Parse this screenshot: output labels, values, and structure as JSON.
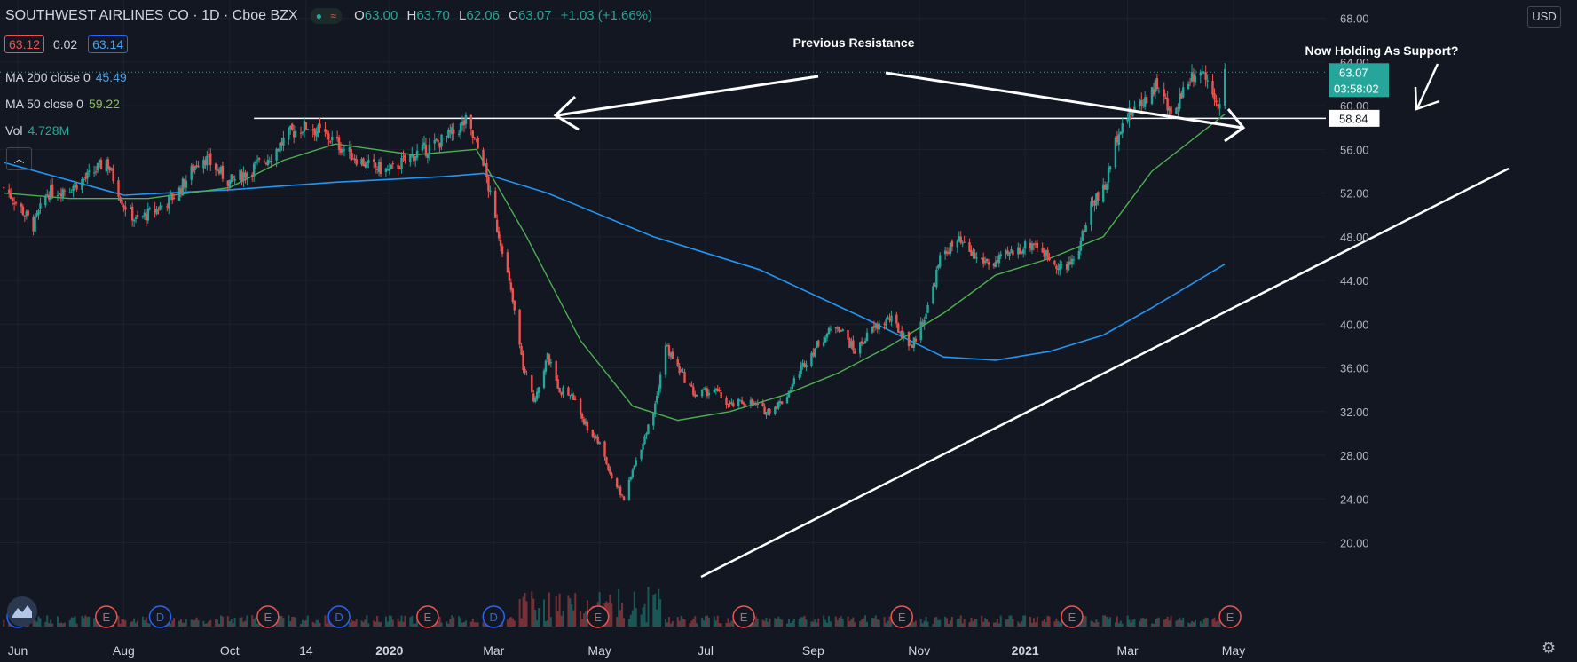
{
  "header": {
    "symbol": "SOUTHWEST AIRLINES CO · 1D · Cboe BZX",
    "open_label": "O",
    "open": "63.00",
    "high_label": "H",
    "high": "63.70",
    "low_label": "L",
    "low": "62.06",
    "close_label": "C",
    "close": "63.07",
    "change": "+1.03 (+1.66%)",
    "pill_dot": "●",
    "pill_wave": "≈",
    "bid": "63.12",
    "spread": "0.02",
    "ask": "63.14"
  },
  "indicators": {
    "ma200_label": "MA 200 close 0",
    "ma200_value": "45.49",
    "ma50_label": "MA 50 close 0",
    "ma50_value": "59.22",
    "vol_label": "Vol",
    "vol_value": "4.728M"
  },
  "ui": {
    "currency": "USD",
    "collapse_icon": "chevron-up-icon",
    "collapse_glyph": "︿",
    "settings_icon": "gear-icon",
    "settings_glyph": "⚙",
    "logo_icon": "tradingview-logo-icon"
  },
  "colors": {
    "background": "#131722",
    "up": "#26a69a",
    "down": "#ef5350",
    "ma200": "#2196f3",
    "ma50": "#4caf50",
    "grid": "#1e222d",
    "annotation": "#ffffff"
  },
  "chart_data": {
    "type": "candlestick",
    "y_axis_ticks": [
      20,
      24,
      28,
      32,
      36,
      40,
      44,
      48,
      52,
      56,
      60,
      64,
      68
    ],
    "y_axis_tick_labels": [
      "20.00",
      "24.00",
      "28.00",
      "32.00",
      "36.00",
      "40.00",
      "44.00",
      "48.00",
      "52.00",
      "56.00",
      "60.00",
      "64.00",
      "68.00"
    ],
    "ylim": [
      18.6,
      69.5
    ],
    "x_axis_labels": [
      {
        "date": "2019-06-01",
        "label": "Jun",
        "bold": false
      },
      {
        "date": "2019-08-01",
        "label": "Aug",
        "bold": false
      },
      {
        "date": "2019-10-01",
        "label": "Oct",
        "bold": false
      },
      {
        "date": "2019-11-14",
        "label": "14",
        "bold": false
      },
      {
        "date": "2020-01-01",
        "label": "2020",
        "bold": true
      },
      {
        "date": "2020-03-01",
        "label": "Mar",
        "bold": false
      },
      {
        "date": "2020-05-01",
        "label": "May",
        "bold": false
      },
      {
        "date": "2020-07-01",
        "label": "Jul",
        "bold": false
      },
      {
        "date": "2020-09-01",
        "label": "Sep",
        "bold": false
      },
      {
        "date": "2020-11-01",
        "label": "Nov",
        "bold": false
      },
      {
        "date": "2021-01-01",
        "label": "2021",
        "bold": true
      },
      {
        "date": "2021-03-01",
        "label": "Mar",
        "bold": false
      },
      {
        "date": "2021-05-01",
        "label": "May",
        "bold": false
      }
    ],
    "price_path": [
      [
        "2019-05-24",
        52.5
      ],
      [
        "2019-06-01",
        51.0
      ],
      [
        "2019-06-10",
        49.0
      ],
      [
        "2019-06-18",
        52.0
      ],
      [
        "2019-07-01",
        52.5
      ],
      [
        "2019-07-12",
        53.5
      ],
      [
        "2019-07-22",
        55.0
      ],
      [
        "2019-08-01",
        51.0
      ],
      [
        "2019-08-08",
        49.5
      ],
      [
        "2019-08-20",
        50.5
      ],
      [
        "2019-09-01",
        52.0
      ],
      [
        "2019-09-15",
        55.5
      ],
      [
        "2019-10-01",
        53.0
      ],
      [
        "2019-10-12",
        54.0
      ],
      [
        "2019-10-25",
        55.5
      ],
      [
        "2019-11-05",
        57.5
      ],
      [
        "2019-11-15",
        58.2
      ],
      [
        "2019-11-28",
        57.0
      ],
      [
        "2019-12-10",
        55.5
      ],
      [
        "2019-12-20",
        54.5
      ],
      [
        "2020-01-01",
        54.0
      ],
      [
        "2020-01-15",
        55.5
      ],
      [
        "2020-01-28",
        56.5
      ],
      [
        "2020-02-07",
        57.5
      ],
      [
        "2020-02-14",
        58.5
      ],
      [
        "2020-02-24",
        55.0
      ],
      [
        "2020-03-01",
        50.0
      ],
      [
        "2020-03-06",
        47.0
      ],
      [
        "2020-03-12",
        42.0
      ],
      [
        "2020-03-18",
        36.0
      ],
      [
        "2020-03-24",
        33.0
      ],
      [
        "2020-04-01",
        37.0
      ],
      [
        "2020-04-08",
        34.0
      ],
      [
        "2020-04-15",
        33.5
      ],
      [
        "2020-04-24",
        30.5
      ],
      [
        "2020-05-01",
        29.0
      ],
      [
        "2020-05-08",
        26.0
      ],
      [
        "2020-05-15",
        24.0
      ],
      [
        "2020-05-22",
        27.5
      ],
      [
        "2020-06-01",
        32.0
      ],
      [
        "2020-06-08",
        38.0
      ],
      [
        "2020-06-15",
        36.0
      ],
      [
        "2020-06-25",
        33.5
      ],
      [
        "2020-07-06",
        34.0
      ],
      [
        "2020-07-15",
        32.5
      ],
      [
        "2020-07-25",
        33.0
      ],
      [
        "2020-08-05",
        32.0
      ],
      [
        "2020-08-15",
        33.0
      ],
      [
        "2020-08-25",
        36.0
      ],
      [
        "2020-09-05",
        38.5
      ],
      [
        "2020-09-15",
        40.0
      ],
      [
        "2020-09-25",
        37.5
      ],
      [
        "2020-10-05",
        39.5
      ],
      [
        "2020-10-15",
        40.5
      ],
      [
        "2020-10-28",
        38.0
      ],
      [
        "2020-11-06",
        41.5
      ],
      [
        "2020-11-14",
        46.5
      ],
      [
        "2020-11-24",
        47.5
      ],
      [
        "2020-12-04",
        46.0
      ],
      [
        "2020-12-14",
        45.5
      ],
      [
        "2020-12-24",
        46.5
      ],
      [
        "2021-01-06",
        47.5
      ],
      [
        "2021-01-15",
        46.0
      ],
      [
        "2021-01-25",
        45.0
      ],
      [
        "2021-02-01",
        47.0
      ],
      [
        "2021-02-08",
        51.0
      ],
      [
        "2021-02-16",
        52.5
      ],
      [
        "2021-02-24",
        58.0
      ],
      [
        "2021-03-01",
        59.0
      ],
      [
        "2021-03-10",
        60.5
      ],
      [
        "2021-03-18",
        62.0
      ],
      [
        "2021-03-26",
        59.0
      ],
      [
        "2021-04-05",
        62.5
      ],
      [
        "2021-04-12",
        63.5
      ],
      [
        "2021-04-19",
        61.5
      ],
      [
        "2021-04-23",
        60.0
      ],
      [
        "2021-04-26",
        63.07
      ]
    ],
    "ma200_path": [
      [
        "2019-05-24",
        54.8
      ],
      [
        "2019-08-01",
        51.8
      ],
      [
        "2019-10-01",
        52.3
      ],
      [
        "2019-12-01",
        53.0
      ],
      [
        "2020-02-01",
        53.5
      ],
      [
        "2020-02-24",
        53.8
      ],
      [
        "2020-04-01",
        52.0
      ],
      [
        "2020-06-01",
        48.0
      ],
      [
        "2020-08-01",
        45.0
      ],
      [
        "2020-10-01",
        40.5
      ],
      [
        "2020-11-15",
        37.0
      ],
      [
        "2020-12-15",
        36.7
      ],
      [
        "2021-01-15",
        37.5
      ],
      [
        "2021-02-15",
        39.0
      ],
      [
        "2021-03-15",
        41.5
      ],
      [
        "2021-04-26",
        45.49
      ]
    ],
    "ma50_path": [
      [
        "2019-05-24",
        52.0
      ],
      [
        "2019-07-01",
        51.5
      ],
      [
        "2019-08-15",
        51.5
      ],
      [
        "2019-10-01",
        52.5
      ],
      [
        "2019-11-01",
        55.0
      ],
      [
        "2019-12-01",
        56.5
      ],
      [
        "2020-01-15",
        55.5
      ],
      [
        "2020-02-20",
        56.0
      ],
      [
        "2020-03-20",
        48.0
      ],
      [
        "2020-04-20",
        38.5
      ],
      [
        "2020-05-20",
        32.5
      ],
      [
        "2020-06-15",
        31.2
      ],
      [
        "2020-07-15",
        32.0
      ],
      [
        "2020-08-15",
        33.5
      ],
      [
        "2020-09-15",
        35.5
      ],
      [
        "2020-10-15",
        38.0
      ],
      [
        "2020-11-15",
        41.0
      ],
      [
        "2020-12-15",
        44.5
      ],
      [
        "2021-01-15",
        46.0
      ],
      [
        "2021-02-15",
        48.0
      ],
      [
        "2021-03-15",
        54.0
      ],
      [
        "2021-04-26",
        59.22
      ]
    ],
    "last_price": "63.07",
    "countdown": "03:58:02",
    "resistance_level": "58.84",
    "events": [
      {
        "date": "2019-06-01",
        "type": "D"
      },
      {
        "date": "2019-07-22",
        "type": "E"
      },
      {
        "date": "2019-08-22",
        "type": "D"
      },
      {
        "date": "2019-10-23",
        "type": "E"
      },
      {
        "date": "2019-12-03",
        "type": "D"
      },
      {
        "date": "2020-01-23",
        "type": "E"
      },
      {
        "date": "2020-03-01",
        "type": "D"
      },
      {
        "date": "2020-04-30",
        "type": "E"
      },
      {
        "date": "2020-07-23",
        "type": "E"
      },
      {
        "date": "2020-10-22",
        "type": "E"
      },
      {
        "date": "2021-01-28",
        "type": "E"
      },
      {
        "date": "2021-04-29",
        "type": "E"
      }
    ],
    "annotations": {
      "previous_resistance": "Previous Resistance",
      "holding_support": "Now Holding As Support?"
    }
  }
}
